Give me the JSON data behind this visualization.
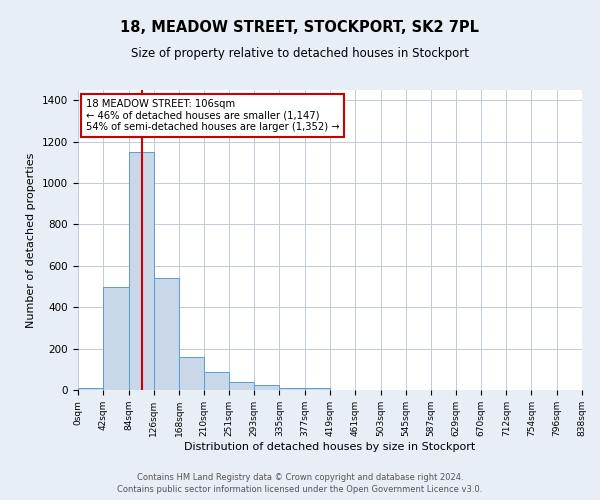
{
  "title": "18, MEADOW STREET, STOCKPORT, SK2 7PL",
  "subtitle": "Size of property relative to detached houses in Stockport",
  "xlabel": "Distribution of detached houses by size in Stockport",
  "ylabel": "Number of detached properties",
  "bin_edges": [
    0,
    42,
    84,
    126,
    168,
    210,
    251,
    293,
    335,
    377,
    419,
    461,
    503,
    545,
    587,
    629,
    670,
    712,
    754,
    796,
    838
  ],
  "bar_heights": [
    10,
    500,
    1150,
    540,
    160,
    85,
    38,
    22,
    8,
    10,
    2,
    0,
    0,
    0,
    0,
    0,
    0,
    0,
    0,
    0
  ],
  "bar_color": "#c8d8e8",
  "bar_edge_color": "#5b9bd5",
  "property_size": 106,
  "vline_color": "#cc0000",
  "annotation_line1": "18 MEADOW STREET: 106sqm",
  "annotation_line2": "← 46% of detached houses are smaller (1,147)",
  "annotation_line3": "54% of semi-detached houses are larger (1,352) →",
  "annotation_box_edge": "#cc0000",
  "annotation_box_face": "#ffffff",
  "ylim": [
    0,
    1450
  ],
  "yticks": [
    0,
    200,
    400,
    600,
    800,
    1000,
    1200,
    1400
  ],
  "grid_color": "#c0ccd8",
  "fig_bg_color": "#e8eef5",
  "plot_bg_color": "#ffffff",
  "footer_line1": "Contains HM Land Registry data © Crown copyright and database right 2024.",
  "footer_line2": "Contains public sector information licensed under the Open Government Licence v3.0."
}
